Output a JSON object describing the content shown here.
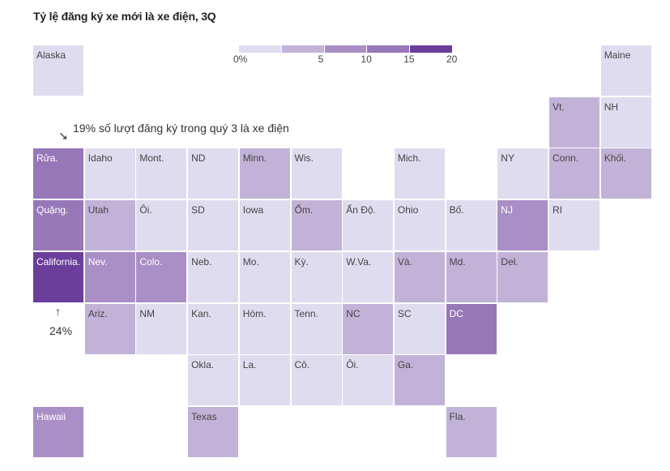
{
  "chart_data": {
    "type": "tile-map",
    "title": "Tỷ lệ đăng ký xe mới là xe điện, 3Q",
    "legend": {
      "bins": [
        {
          "min": 0,
          "max": 5,
          "color": "#e0dcef"
        },
        {
          "min": 5,
          "max": 10,
          "color": "#c2b2d8"
        },
        {
          "min": 10,
          "max": 15,
          "color": "#a98fc6"
        },
        {
          "min": 15,
          "max": 20,
          "color": "#9777b8"
        },
        {
          "min": 20,
          "max": 25,
          "color": "#6a3e9a"
        }
      ],
      "ticks": [
        "0%",
        "5",
        "10",
        "15",
        "20"
      ]
    },
    "annotations": {
      "washington": "19% số lượt đăng ký trong quý 3 là xe điện",
      "california": "24%"
    },
    "tiles": [
      {
        "label": "Alaska",
        "row": 0,
        "col": 0,
        "bin": 0
      },
      {
        "label": "Maine",
        "row": 0,
        "col": 11,
        "bin": 0
      },
      {
        "label": "Vt.",
        "row": 1,
        "col": 10,
        "bin": 1
      },
      {
        "label": "NH",
        "row": 1,
        "col": 11,
        "bin": 0
      },
      {
        "label": "Rửa.",
        "row": 2,
        "col": 0,
        "bin": 3
      },
      {
        "label": "Idaho",
        "row": 2,
        "col": 1,
        "bin": 0
      },
      {
        "label": "Mont.",
        "row": 2,
        "col": 2,
        "bin": 0
      },
      {
        "label": "ND",
        "row": 2,
        "col": 3,
        "bin": 0
      },
      {
        "label": "Minn.",
        "row": 2,
        "col": 4,
        "bin": 1
      },
      {
        "label": "Wis.",
        "row": 2,
        "col": 5,
        "bin": 0
      },
      {
        "label": "Mich.",
        "row": 2,
        "col": 7,
        "bin": 0
      },
      {
        "label": "NY",
        "row": 2,
        "col": 9,
        "bin": 0
      },
      {
        "label": "Conn.",
        "row": 2,
        "col": 10,
        "bin": 1
      },
      {
        "label": "Khối.",
        "row": 2,
        "col": 11,
        "bin": 1
      },
      {
        "label": "Quặng.",
        "row": 3,
        "col": 0,
        "bin": 3
      },
      {
        "label": "Utah",
        "row": 3,
        "col": 1,
        "bin": 1
      },
      {
        "label": "Ôi.",
        "row": 3,
        "col": 2,
        "bin": 0
      },
      {
        "label": "SD",
        "row": 3,
        "col": 3,
        "bin": 0
      },
      {
        "label": "Iowa",
        "row": 3,
        "col": 4,
        "bin": 0
      },
      {
        "label": "Ốm.",
        "row": 3,
        "col": 5,
        "bin": 1
      },
      {
        "label": "Ấn Độ.",
        "row": 3,
        "col": 6,
        "bin": 0
      },
      {
        "label": "Ohio",
        "row": 3,
        "col": 7,
        "bin": 0
      },
      {
        "label": "Bố.",
        "row": 3,
        "col": 8,
        "bin": 0
      },
      {
        "label": "NJ",
        "row": 3,
        "col": 9,
        "bin": 2
      },
      {
        "label": "RI",
        "row": 3,
        "col": 10,
        "bin": 0
      },
      {
        "label": "California.",
        "row": 4,
        "col": 0,
        "bin": 4
      },
      {
        "label": "Nev.",
        "row": 4,
        "col": 1,
        "bin": 2
      },
      {
        "label": "Colo.",
        "row": 4,
        "col": 2,
        "bin": 2
      },
      {
        "label": "Neb.",
        "row": 4,
        "col": 3,
        "bin": 0
      },
      {
        "label": "Mo.",
        "row": 4,
        "col": 4,
        "bin": 0
      },
      {
        "label": "Kỳ.",
        "row": 4,
        "col": 5,
        "bin": 0
      },
      {
        "label": "W.Va.",
        "row": 4,
        "col": 6,
        "bin": 0
      },
      {
        "label": "Và.",
        "row": 4,
        "col": 7,
        "bin": 1
      },
      {
        "label": "Md.",
        "row": 4,
        "col": 8,
        "bin": 1
      },
      {
        "label": "Del.",
        "row": 4,
        "col": 9,
        "bin": 1
      },
      {
        "label": "Ariz.",
        "row": 5,
        "col": 1,
        "bin": 1
      },
      {
        "label": "NM",
        "row": 5,
        "col": 2,
        "bin": 0
      },
      {
        "label": "Kan.",
        "row": 5,
        "col": 3,
        "bin": 0
      },
      {
        "label": "Hòm.",
        "row": 5,
        "col": 4,
        "bin": 0
      },
      {
        "label": "Tenn.",
        "row": 5,
        "col": 5,
        "bin": 0
      },
      {
        "label": "NC",
        "row": 5,
        "col": 6,
        "bin": 1
      },
      {
        "label": "SC",
        "row": 5,
        "col": 7,
        "bin": 0
      },
      {
        "label": "DC",
        "row": 5,
        "col": 8,
        "bin": 3
      },
      {
        "label": "Okla.",
        "row": 6,
        "col": 3,
        "bin": 0
      },
      {
        "label": "La.",
        "row": 6,
        "col": 4,
        "bin": 0
      },
      {
        "label": "Cô.",
        "row": 6,
        "col": 5,
        "bin": 0
      },
      {
        "label": "Ôi.",
        "row": 6,
        "col": 6,
        "bin": 0
      },
      {
        "label": "Ga.",
        "row": 6,
        "col": 7,
        "bin": 1
      },
      {
        "label": "Hawaii",
        "row": 7,
        "col": 0,
        "bin": 2
      },
      {
        "label": "Texas",
        "row": 7,
        "col": 3,
        "bin": 1
      },
      {
        "label": "Fla.",
        "row": 7,
        "col": 8,
        "bin": 1
      }
    ]
  }
}
